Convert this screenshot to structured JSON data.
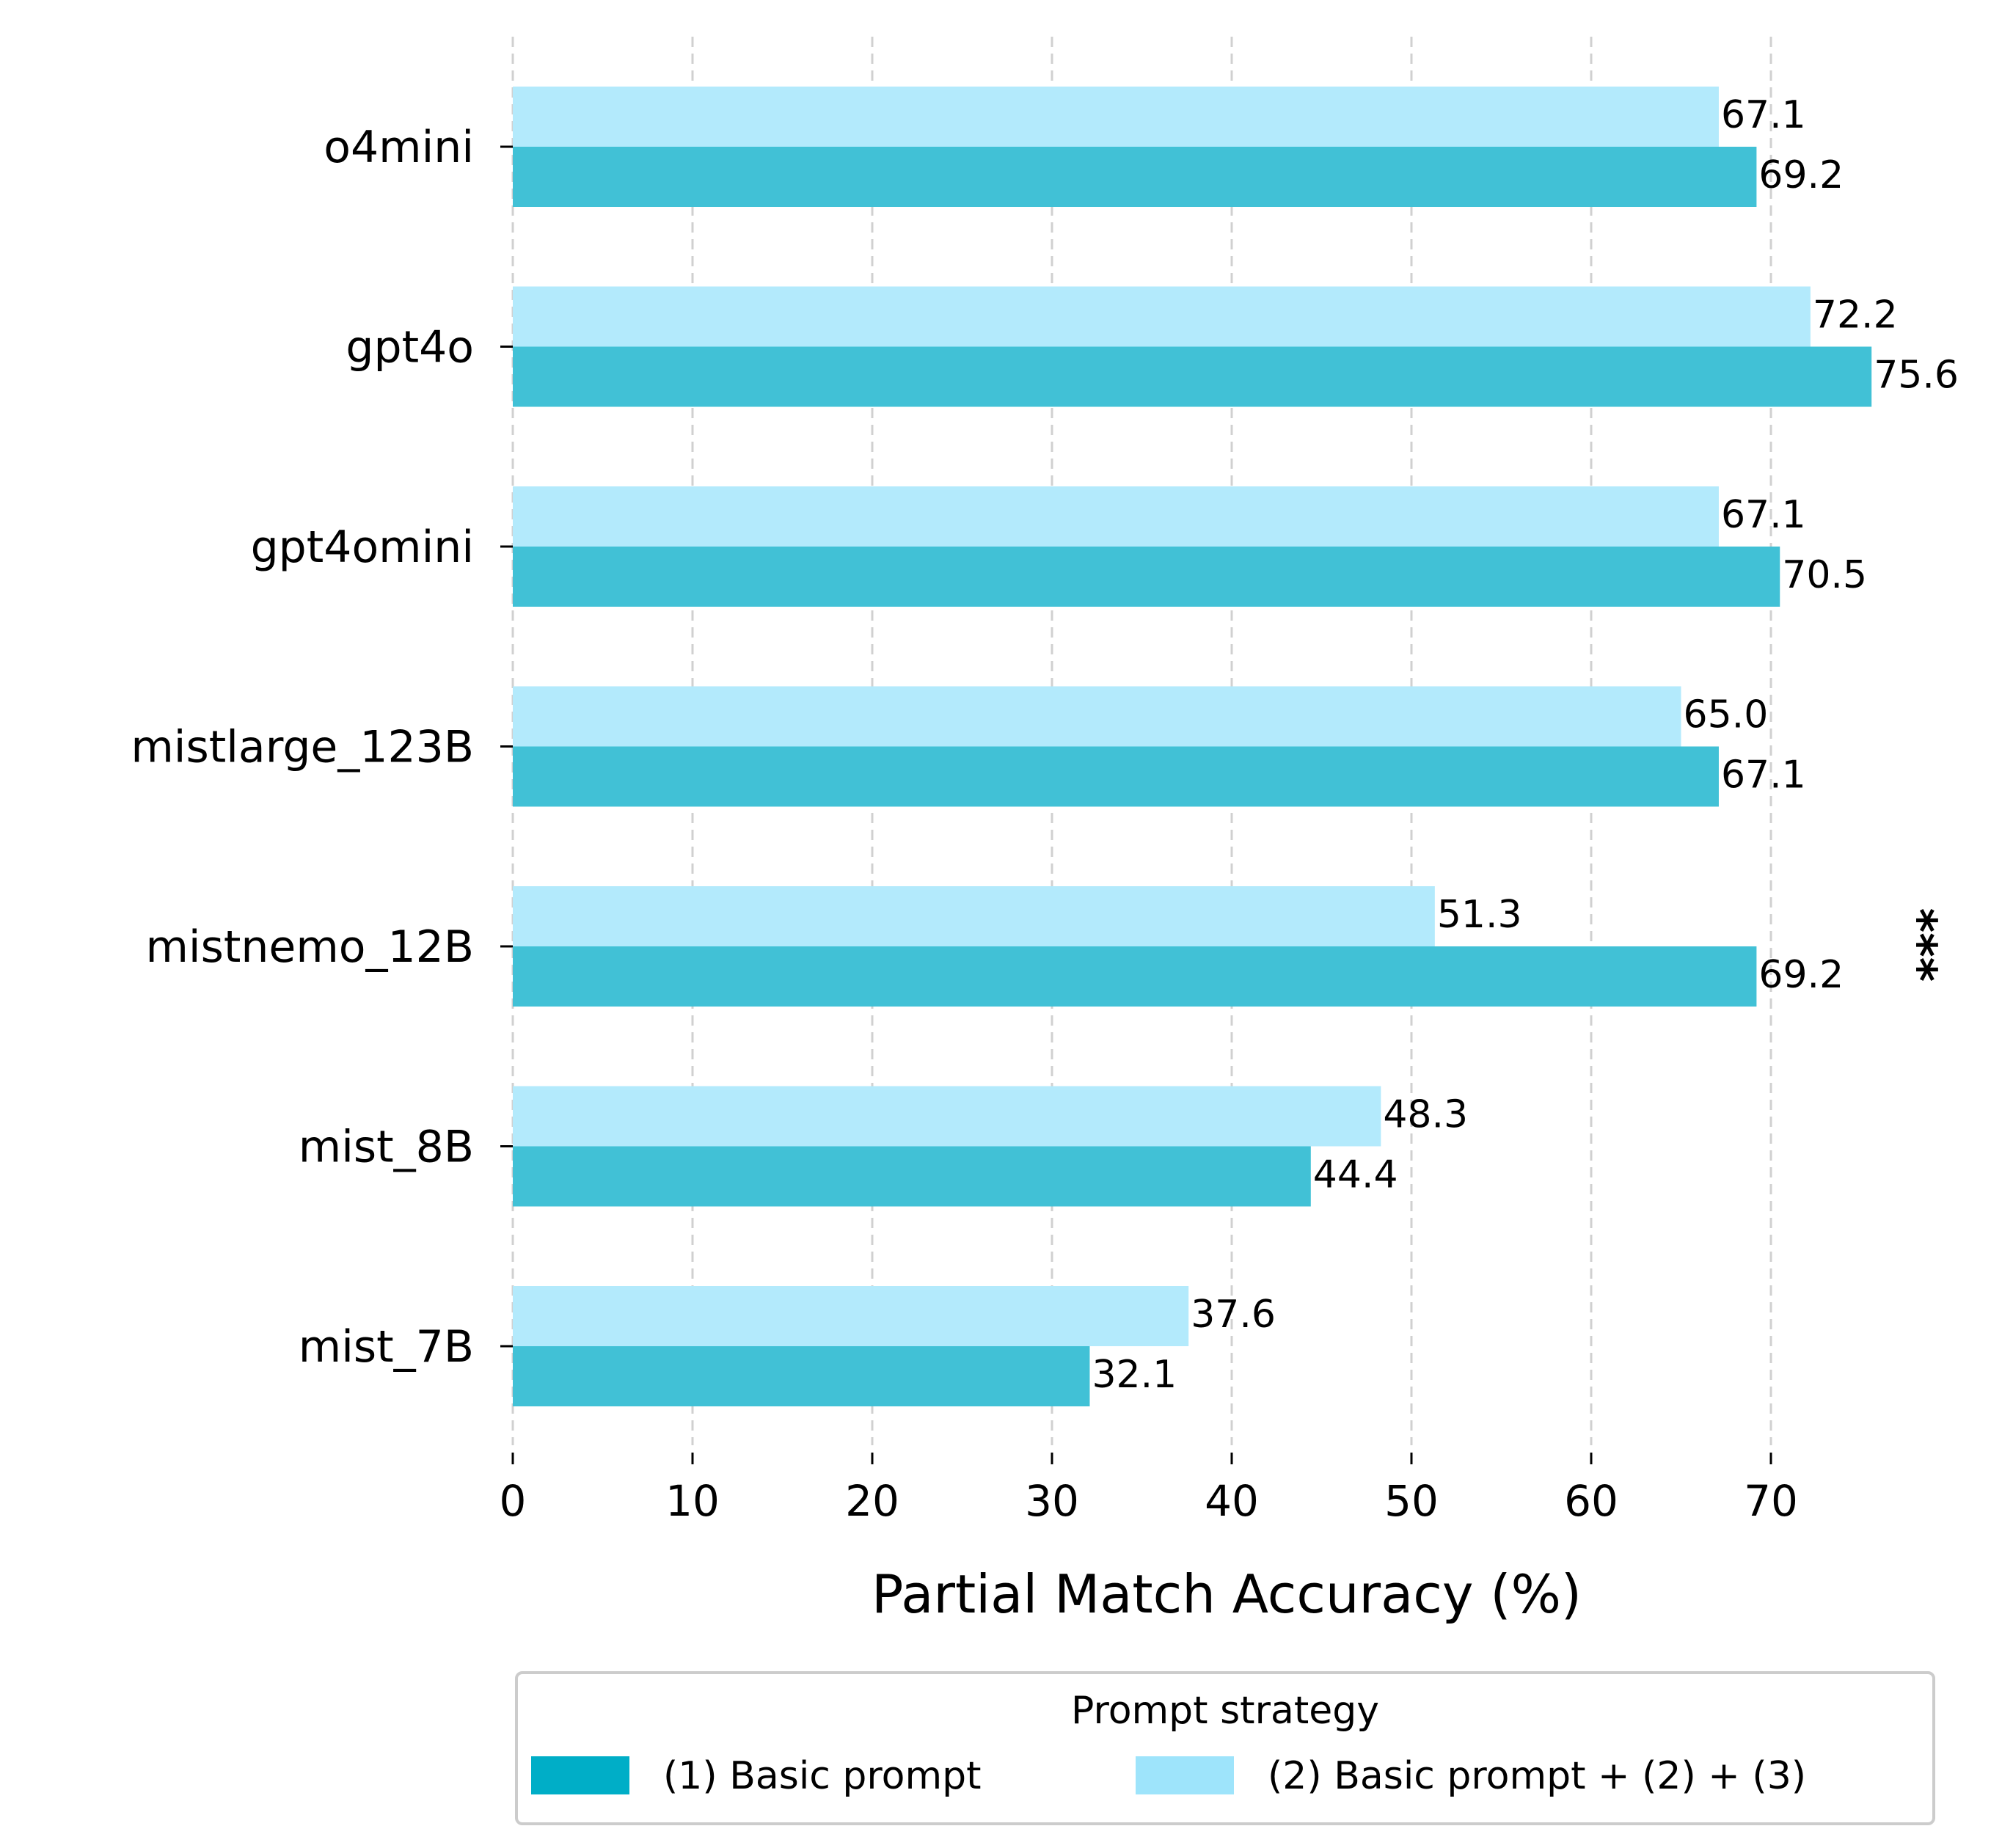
{
  "chart_data": {
    "type": "bar",
    "orientation": "horizontal",
    "categories": [
      "o4mini",
      "gpt4o",
      "gpt4omini",
      "mistlarge_123B",
      "mistnemo_12B",
      "mist_8B",
      "mist_7B"
    ],
    "series": [
      {
        "name": "(1) Basic prompt",
        "color": "#00aec7",
        "bar_color": "#41c1d6",
        "values": [
          69.2,
          75.6,
          70.5,
          67.1,
          69.2,
          44.4,
          32.1
        ],
        "labels": [
          "69.2",
          "75.6",
          "70.5",
          "67.1",
          "69.2",
          "44.4",
          "32.1"
        ]
      },
      {
        "name": "(2) Basic prompt + (2) + (3)",
        "color": "#9ee4fb",
        "bar_color": "#b3eafc",
        "values": [
          67.1,
          72.2,
          67.1,
          65.0,
          51.3,
          48.3,
          37.6
        ],
        "labels": [
          "67.1",
          "72.2",
          "67.1",
          "65.0",
          "51.3",
          "48.3",
          "37.6"
        ]
      }
    ],
    "xlabel": "Partial Match Accuracy (%)",
    "xlim": [
      0,
      78
    ],
    "xticks": [
      0,
      10,
      20,
      30,
      40,
      50,
      60,
      70
    ],
    "xtick_labels": [
      "0",
      "10",
      "20",
      "30",
      "40",
      "50",
      "60",
      "70"
    ],
    "grid": "x-dashed",
    "legend": {
      "title": "Prompt strategy",
      "placement": "bottom-center"
    },
    "annotations": [
      {
        "category": "mistnemo_12B",
        "text": "***"
      }
    ]
  }
}
